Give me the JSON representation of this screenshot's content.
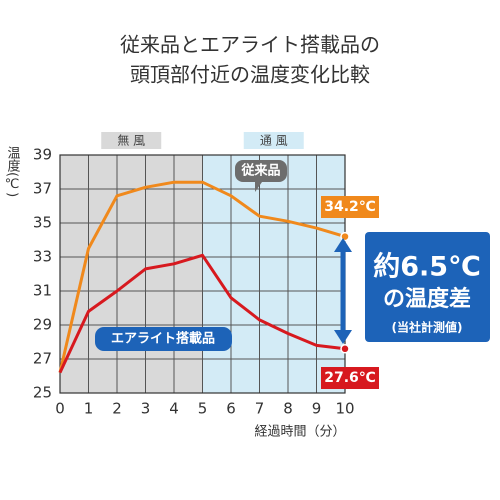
{
  "chart_data": {
    "type": "line",
    "title_lines": [
      "従来品とエアライト搭載品の",
      "頭頂部付近の温度変化比較"
    ],
    "y_label": "温度(℃)",
    "x_label": "経過時間（分）",
    "x": [
      0,
      1,
      2,
      3,
      4,
      5,
      6,
      7,
      8,
      9,
      10
    ],
    "xlim": [
      0,
      10
    ],
    "xticks": [
      0,
      1,
      2,
      3,
      4,
      5,
      6,
      7,
      8,
      9,
      10
    ],
    "ylim": [
      25,
      39
    ],
    "yticks": [
      25,
      27,
      29,
      31,
      33,
      35,
      37,
      39
    ],
    "grid": true,
    "regions": [
      {
        "label": "無 風",
        "from": 0,
        "to": 5,
        "color": "#d9d9d9"
      },
      {
        "label": "通 風",
        "from": 5,
        "to": 10,
        "color": "#d3ebf6"
      }
    ],
    "series": [
      {
        "name": "従来品",
        "color": "#f0891c",
        "values": [
          26.2,
          33.5,
          36.6,
          37.1,
          37.4,
          37.4,
          36.6,
          35.4,
          35.1,
          34.7,
          34.2
        ]
      },
      {
        "name": "エアライト搭載品",
        "color": "#d7191f",
        "values": [
          26.2,
          29.8,
          31.0,
          32.3,
          32.6,
          33.1,
          30.6,
          29.3,
          28.5,
          27.8,
          27.6
        ]
      }
    ],
    "end_labels": [
      "34.2℃",
      "27.6℃"
    ],
    "annotations": [
      "約6.5℃",
      "の温度差",
      "(当社計測値)"
    ]
  }
}
